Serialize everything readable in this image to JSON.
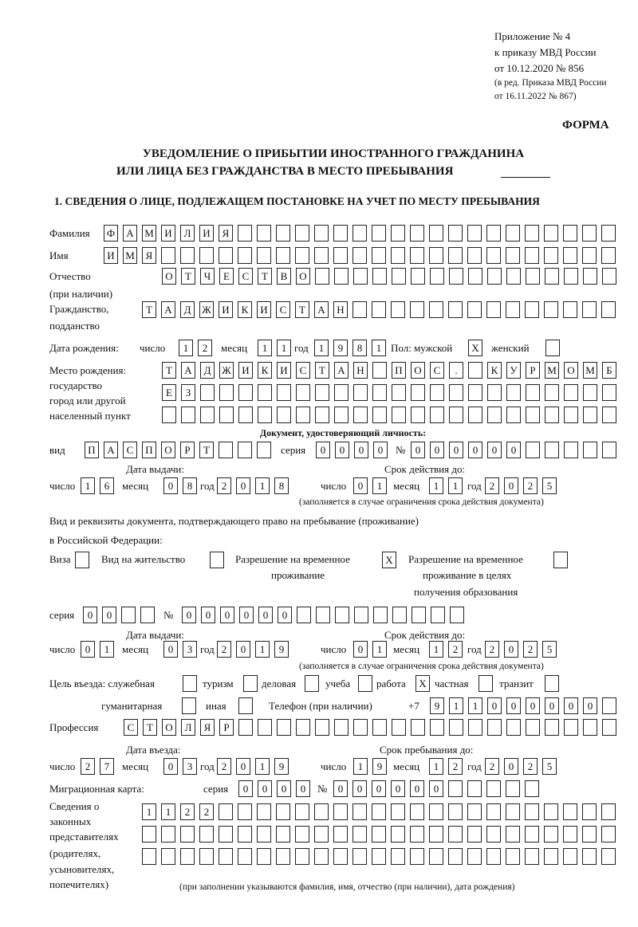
{
  "header": {
    "appendix": "Приложение № 4",
    "order": "к приказу МВД России",
    "order_date": "от 10.12.2020 № 856",
    "edit_line1": "(в ред. Приказа МВД России",
    "edit_line2": "от 16.11.2022 № 867)"
  },
  "form_label": "ФОРМА",
  "title_line1": "УВЕДОМЛЕНИЕ О ПРИБЫТИИ ИНОСТРАННОГО ГРАЖДАНИНА",
  "title_line2": "ИЛИ ЛИЦА БЕЗ ГРАЖДАНСТВА В МЕСТО ПРЕБЫВАНИЯ",
  "section1": "1. СВЕДЕНИЯ О ЛИЦЕ, ПОДЛЕЖАЩЕМ ПОСТАНОВКЕ НА УЧЕТ ПО МЕСТУ ПРЕБЫВАНИЯ",
  "labels": {
    "surname": "Фамилия",
    "name": "Имя",
    "patronymic": "Отчество",
    "patronymic_note": "(при наличии)",
    "citizenship": "Гражданство,",
    "citizenship2": "подданство",
    "birth_date": "Дата рождения:",
    "day": "число",
    "month": "месяц",
    "year": "год",
    "sex": "Пол: мужской",
    "female": "женский",
    "birthplace1": "Место рождения:",
    "birthplace2": "государство",
    "birthplace3": "город или другой",
    "birthplace4": "населенный пункт",
    "id_doc": "Документ, удостоверяющий личность:",
    "kind": "вид",
    "series": "серия",
    "number": "№",
    "issue_date": "Дата выдачи:",
    "valid_until": "Срок действия до:",
    "validity_note": "(заполняется в случае ограничения срока действия документа)",
    "stay_doc1": "Вид и реквизиты документа, подтверждающего право на пребывание (проживание)",
    "stay_doc2": "в Российской Федерации:",
    "visa": "Виза",
    "residence": "Вид на жительство",
    "trp1": "Разрешение на временное",
    "trp2": "проживание",
    "trp_edu1": "Разрешение на временное",
    "trp_edu2": "проживание в целях",
    "trp_edu3": "получения образования",
    "purpose": "Цель въезда: служебная",
    "tourism": "туризм",
    "business": "деловая",
    "study": "учеба",
    "work": "работа",
    "private": "частная",
    "transit": "транзит",
    "humanitarian": "гуманитарная",
    "other": "иная",
    "phone": "Телефон (при наличии)",
    "phone_prefix": "+7",
    "profession": "Профессия",
    "entry_date": "Дата въезда:",
    "stay_until": "Срок пребывания до:",
    "migration_card": "Миграционная карта:",
    "reps1": "Сведения о",
    "reps2": "законных",
    "reps3": "представителях",
    "reps4": "(родителях,",
    "reps5": "усыновителях,",
    "reps6": "попечителях)",
    "reps_note": "(при заполнении указываются фамилия, имя, отчество (при наличии), дата рождения)"
  },
  "fields": {
    "surname": "ФАМИЛИЯ",
    "name": "ИМЯ",
    "patronymic": "ОТЧЕСТВО",
    "citizenship": "ТАДЖИКИСТАН",
    "birth_day": "12",
    "birth_month": "11",
    "birth_year": "1981",
    "sex_male": "X",
    "sex_female": "",
    "birthplace_1": "ТАДЖИКИСТАН ПОС. КУРМОМБ",
    "birthplace_2": "ЕЗ",
    "birthplace_3": "",
    "id_kind": "ПАСПОРТ",
    "id_series": "0000",
    "id_number": "000000",
    "id_issue_day": "16",
    "id_issue_month": "08",
    "id_issue_year": "2018",
    "id_valid_day": "01",
    "id_valid_month": "11",
    "id_valid_year": "2025",
    "visa": "",
    "residence_permit": "",
    "temp_residence": "X",
    "temp_residence_edu": "",
    "stay_series": "00",
    "stay_number": "000000",
    "stay_issue_day": "01",
    "stay_issue_month": "03",
    "stay_issue_year": "2019",
    "stay_valid_day": "01",
    "stay_valid_month": "12",
    "stay_valid_year": "2025",
    "purpose_official": "",
    "purpose_tourism": "",
    "purpose_business": "",
    "purpose_study": "",
    "purpose_work": "X",
    "purpose_private": "",
    "purpose_transit": "",
    "purpose_humanitarian": "",
    "purpose_other": "",
    "phone": "911000000",
    "profession": "СТОЛЯР",
    "entry_day": "27",
    "entry_month": "03",
    "entry_year": "2019",
    "stay_until_day": "19",
    "stay_until_month": "12",
    "stay_until_year": "2025",
    "mc_series": "0000",
    "mc_number": "000000",
    "reps_1": "1122",
    "reps_2": "",
    "reps_3": ""
  }
}
